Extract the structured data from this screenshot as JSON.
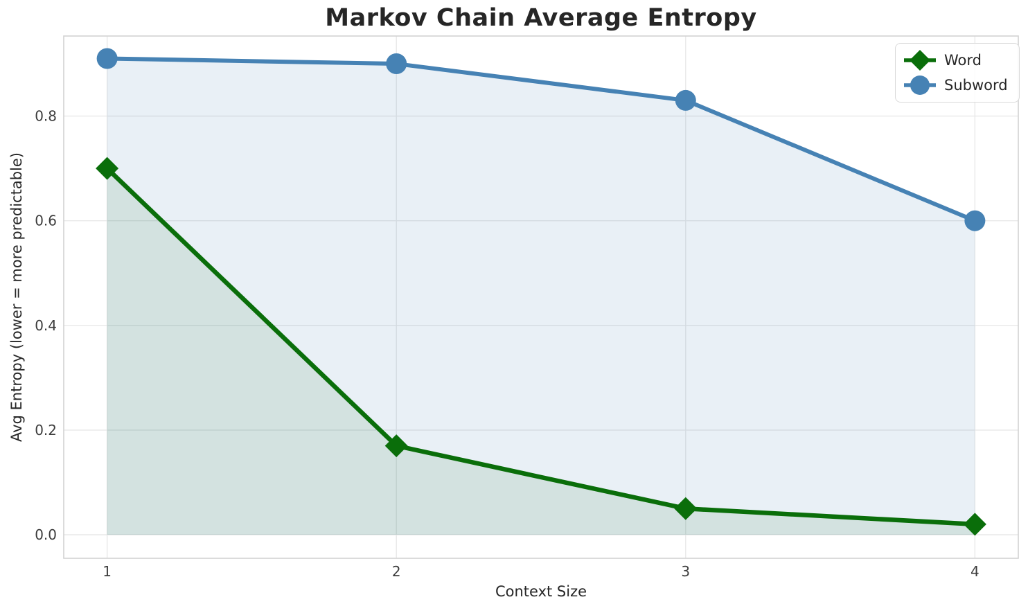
{
  "chart_data": {
    "type": "line",
    "title": "Markov Chain Average Entropy",
    "xlabel": "Context Size",
    "ylabel": "Avg Entropy (lower = more predictable)",
    "x": [
      1,
      2,
      3,
      4
    ],
    "series": [
      {
        "name": "Word",
        "values": [
          0.7,
          0.17,
          0.05,
          0.02
        ],
        "color": "#0a6e0a",
        "marker": "diamond",
        "fill_opacity": 0.1,
        "line_width": 6.5
      },
      {
        "name": "Subword",
        "values": [
          0.91,
          0.9,
          0.83,
          0.6
        ],
        "color": "#4682b4",
        "marker": "circle",
        "fill_opacity": 0.12,
        "line_width": 6
      }
    ],
    "xticks": [
      "1",
      "2",
      "3",
      "4"
    ],
    "xtick_values": [
      1,
      2,
      3,
      4
    ],
    "yticks": [
      "0.0",
      "0.2",
      "0.4",
      "0.6",
      "0.8"
    ],
    "ytick_values": [
      0.0,
      0.2,
      0.4,
      0.6,
      0.8
    ],
    "xlim": [
      0.85,
      4.15
    ],
    "ylim": [
      -0.045,
      0.953
    ],
    "grid": true,
    "area_fill": true,
    "legend_position": "upper right",
    "colors": {
      "background": "#ffffff",
      "grid": "#e8e8e8",
      "spine": "#d2d2d2",
      "title_text": "#262626",
      "tick_text": "#3c3c3c",
      "label_text": "#262626",
      "legend_border": "#d9d9d9"
    }
  }
}
